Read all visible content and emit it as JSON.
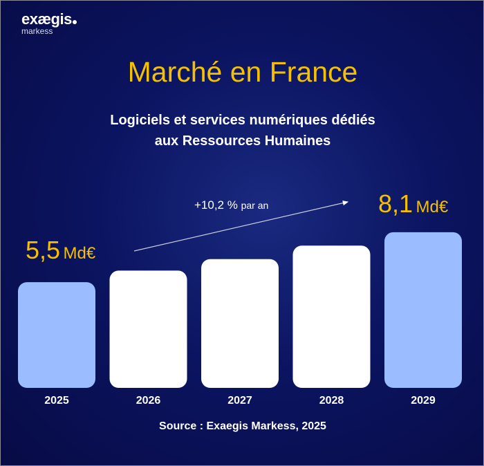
{
  "logo": {
    "brand": "exægis",
    "sub": "markess"
  },
  "title": "Marché en France",
  "subtitle": [
    "Logiciels et services numériques dédiés",
    "aux Ressources Humaines"
  ],
  "growth": {
    "value": "+10,2 %",
    "suffix": "par an"
  },
  "labels": {
    "start": {
      "num": "5,5",
      "unit": "Md€"
    },
    "end": {
      "num": "8,1",
      "unit": "Md€"
    }
  },
  "source": "Source : Exaegis Markess, 2025",
  "colors": {
    "background": "#0b1460",
    "accent": "#f5c000",
    "bar_highlight": "#9bbcff",
    "bar": "#ffffff"
  },
  "chart_data": {
    "type": "bar",
    "categories": [
      "2025",
      "2026",
      "2027",
      "2028",
      "2029"
    ],
    "values": [
      5.5,
      6.1,
      6.7,
      7.4,
      8.1
    ],
    "unit": "Md€",
    "highlighted": [
      "2025",
      "2029"
    ],
    "title": "Marché en France",
    "xlabel": "",
    "ylabel": ""
  }
}
